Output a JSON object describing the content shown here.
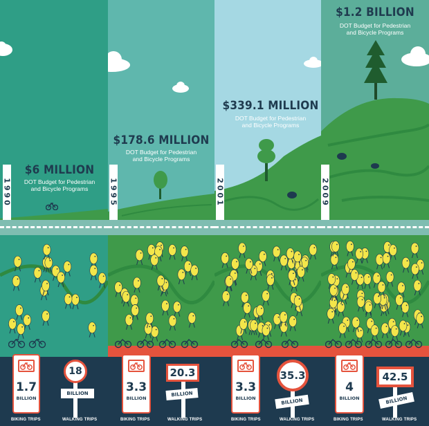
{
  "panels": [
    {
      "year": "1990",
      "amount": "$6 MILLION",
      "budget_label_line1": "DOT Budget for Pedestrian",
      "budget_label_line2": "and Bicycle Programs",
      "biking_value": "1.7",
      "biking_unit": "BILLION",
      "walking_value": "18",
      "walking_unit": "BILLION"
    },
    {
      "year": "1995",
      "amount": "$178.6 MILLION",
      "budget_label_line1": "DOT Budget for Pedestrian",
      "budget_label_line2": "and Bicycle Programs",
      "biking_value": "3.3",
      "biking_unit": "BILLION",
      "walking_value": "20.3",
      "walking_unit": "BILLION"
    },
    {
      "year": "2001",
      "amount": "$339.1 MILLION",
      "budget_label_line1": "DOT Budget for Pedestrian",
      "budget_label_line2": "and Bicycle Programs",
      "biking_value": "3.3",
      "biking_unit": "BILLION",
      "walking_value": "35.3",
      "walking_unit": "BILLION"
    },
    {
      "year": "2009",
      "amount": "$1.2 BILLION",
      "budget_label_line1": "DOT Budget for Pedestrian",
      "budget_label_line2": "and Bicycle Programs",
      "biking_value": "4",
      "biking_unit": "BILLION",
      "walking_value": "42.5",
      "walking_unit": "BILLION"
    }
  ],
  "labels": {
    "biking": "BIKING TRIPS",
    "walking": "WALKING TRIPS"
  },
  "colors": {
    "sky_1990": "#2f9e86",
    "sky_1995": "#5fb7ad",
    "sky_2001": "#a5d8e3",
    "sky_2009": "#5cae9a",
    "hill": "#3f9a4a",
    "navy": "#1e3a4f",
    "red": "#e5533d",
    "yellow": "#f3e64a"
  },
  "icons": [
    "bicycle-icon",
    "cloud-icon",
    "tree-icon",
    "walker-icon"
  ]
}
